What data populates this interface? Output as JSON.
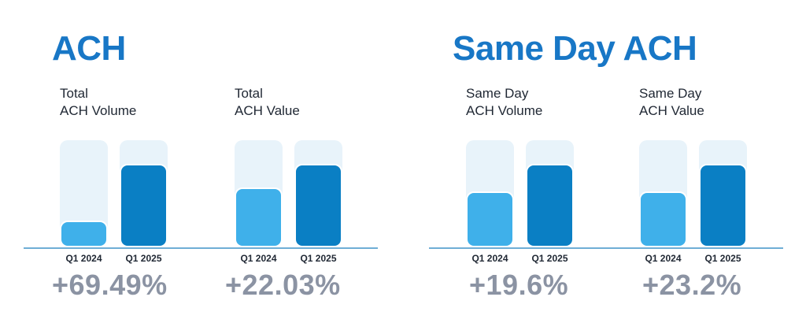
{
  "sections": [
    {
      "title": "ACH"
    },
    {
      "title": "Same Day ACH"
    }
  ],
  "colors": {
    "title": "#1877c6",
    "bar_q1_2024": "#3fb0ea",
    "bar_q1_2025": "#0a7fc4",
    "bar_background": "#e8f3fa",
    "change_text": "#8b93a3"
  },
  "chart_data": [
    {
      "type": "bar",
      "section": "ACH",
      "title": "Total\nACH Volume",
      "categories": [
        "Q1 2024",
        "Q1 2025"
      ],
      "values": [
        0.25,
        0.78
      ],
      "ylim": [
        0,
        1
      ],
      "change": "+69.49%"
    },
    {
      "type": "bar",
      "section": "ACH",
      "title": "Total\nACH Value",
      "categories": [
        "Q1 2024",
        "Q1 2025"
      ],
      "values": [
        0.56,
        0.78
      ],
      "ylim": [
        0,
        1
      ],
      "change": "+22.03%"
    },
    {
      "type": "bar",
      "section": "Same Day ACH",
      "title": "Same Day\nACH Volume",
      "categories": [
        "Q1 2024",
        "Q1 2025"
      ],
      "values": [
        0.52,
        0.78
      ],
      "ylim": [
        0,
        1
      ],
      "change": "+19.6%"
    },
    {
      "type": "bar",
      "section": "Same Day ACH",
      "title": "Same Day\nACH Value",
      "categories": [
        "Q1 2024",
        "Q1 2025"
      ],
      "values": [
        0.52,
        0.78
      ],
      "ylim": [
        0,
        1
      ],
      "change": "+23.2%"
    }
  ]
}
